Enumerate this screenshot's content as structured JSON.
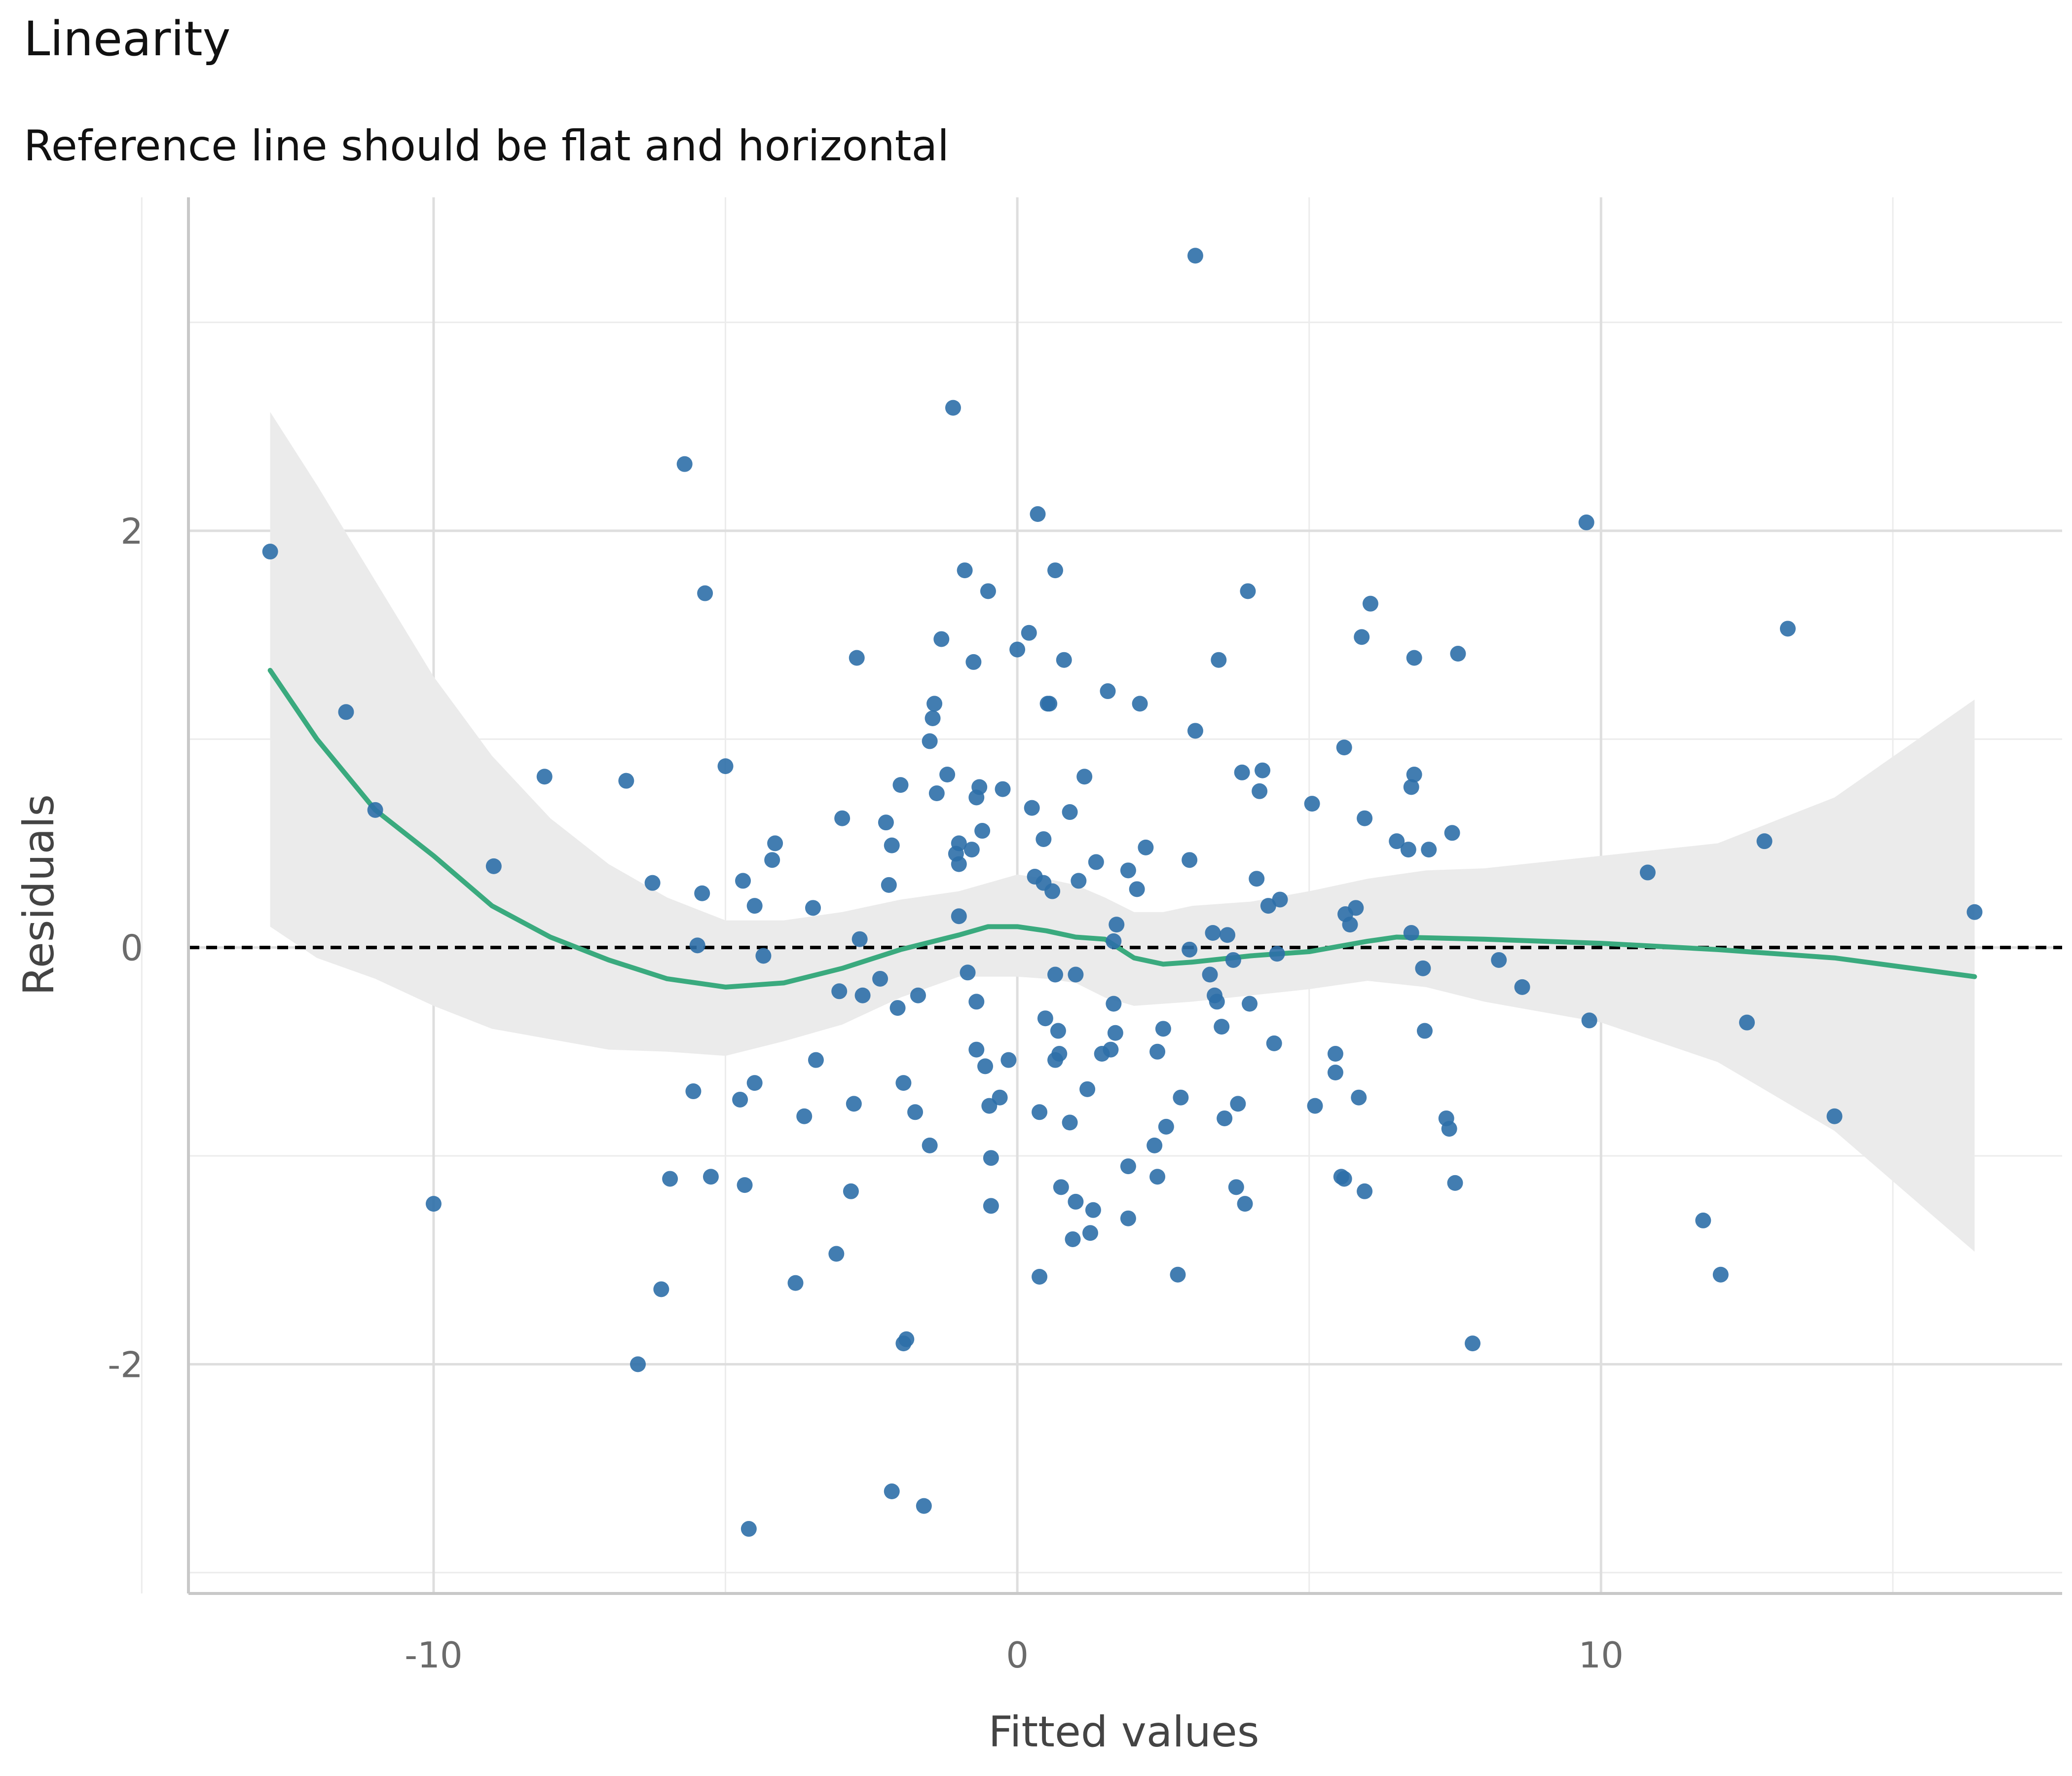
{
  "chart_data": {
    "type": "scatter",
    "title": "Linearity",
    "subtitle": "Reference line should be flat and horizontal",
    "xlabel": "Fitted values",
    "ylabel": "Residuals",
    "xlim": [
      -14.2,
      17.9
    ],
    "ylim": [
      -3.1,
      3.6
    ],
    "x_ticks": [
      -10,
      0,
      10
    ],
    "x_tick_labels": [
      "-10",
      "0",
      "10"
    ],
    "y_ticks": [
      -2,
      0,
      2
    ],
    "y_tick_labels": [
      "-2",
      "0",
      "2"
    ],
    "x_minor": [
      -15,
      -5,
      5,
      15
    ],
    "y_minor": [
      -3,
      -1,
      1,
      3
    ],
    "grid": true,
    "legend": "none",
    "reference_line": {
      "y": 0,
      "style": "dashed",
      "color": "#000000"
    },
    "colors": {
      "points": "#2e6fa8",
      "smooth": "#3aaa7e",
      "ribbon": "#ebebeb"
    },
    "points": [
      [
        -12.8,
        1.9
      ],
      [
        -11.5,
        1.13
      ],
      [
        -11.0,
        0.66
      ],
      [
        -10.0,
        -1.23
      ],
      [
        -8.97,
        0.39
      ],
      [
        -8.1,
        0.82
      ],
      [
        -6.7,
        0.8
      ],
      [
        -6.5,
        -2.0
      ],
      [
        -6.25,
        0.31
      ],
      [
        -6.1,
        -1.64
      ],
      [
        -5.95,
        -1.11
      ],
      [
        -5.7,
        2.32
      ],
      [
        -5.55,
        -0.69
      ],
      [
        -5.48,
        0.01
      ],
      [
        -5.4,
        0.26
      ],
      [
        -5.35,
        1.7
      ],
      [
        -5.25,
        -1.1
      ],
      [
        -5.0,
        0.87
      ],
      [
        -4.75,
        -0.73
      ],
      [
        -4.7,
        0.32
      ],
      [
        -4.67,
        -1.14
      ],
      [
        -4.6,
        -2.79
      ],
      [
        -4.5,
        0.2
      ],
      [
        -4.5,
        -0.65
      ],
      [
        -4.35,
        -0.04
      ],
      [
        -4.2,
        0.42
      ],
      [
        -4.15,
        0.5
      ],
      [
        -3.8,
        -1.61
      ],
      [
        -3.65,
        -0.81
      ],
      [
        -3.5,
        0.19
      ],
      [
        -3.45,
        -0.54
      ],
      [
        -3.1,
        -1.47
      ],
      [
        -3.05,
        -0.21
      ],
      [
        -3.0,
        0.62
      ],
      [
        -2.85,
        -1.17
      ],
      [
        -2.8,
        -0.75
      ],
      [
        -2.75,
        1.39
      ],
      [
        -2.7,
        0.04
      ],
      [
        -2.65,
        -0.23
      ],
      [
        -2.35,
        -0.15
      ],
      [
        -2.25,
        0.6
      ],
      [
        -2.2,
        0.3
      ],
      [
        -2.15,
        0.49
      ],
      [
        -2.15,
        -2.61
      ],
      [
        -2.05,
        -0.29
      ],
      [
        -2.0,
        0.78
      ],
      [
        -1.95,
        -1.9
      ],
      [
        -1.95,
        -0.65
      ],
      [
        -1.9,
        -1.88
      ],
      [
        -1.75,
        -0.79
      ],
      [
        -1.7,
        -0.23
      ],
      [
        -1.6,
        -2.68
      ],
      [
        -1.5,
        0.99
      ],
      [
        -1.5,
        -0.95
      ],
      [
        -1.45,
        1.1
      ],
      [
        -1.42,
        1.17
      ],
      [
        -1.38,
        0.74
      ],
      [
        -1.3,
        1.48
      ],
      [
        -1.2,
        0.83
      ],
      [
        -1.1,
        2.59
      ],
      [
        -1.05,
        0.45
      ],
      [
        -1.0,
        0.5
      ],
      [
        -1.0,
        0.15
      ],
      [
        -1.0,
        0.4
      ],
      [
        -0.9,
        1.81
      ],
      [
        -0.85,
        -0.12
      ],
      [
        -0.78,
        0.47
      ],
      [
        -0.75,
        1.37
      ],
      [
        -0.7,
        0.72
      ],
      [
        -0.7,
        -0.26
      ],
      [
        -0.7,
        -0.49
      ],
      [
        -0.65,
        0.77
      ],
      [
        -0.6,
        0.56
      ],
      [
        -0.55,
        -0.57
      ],
      [
        -0.5,
        1.71
      ],
      [
        -0.48,
        -0.76
      ],
      [
        -0.45,
        -1.01
      ],
      [
        -0.45,
        -1.24
      ],
      [
        -0.3,
        -0.72
      ],
      [
        -0.25,
        0.76
      ],
      [
        -0.15,
        -0.54
      ],
      [
        0.0,
        1.43
      ],
      [
        0.2,
        1.51
      ],
      [
        0.25,
        0.67
      ],
      [
        0.3,
        0.34
      ],
      [
        0.35,
        2.08
      ],
      [
        0.38,
        -0.79
      ],
      [
        0.38,
        -1.58
      ],
      [
        0.45,
        0.31
      ],
      [
        0.45,
        0.52
      ],
      [
        0.48,
        -0.34
      ],
      [
        0.52,
        1.17
      ],
      [
        0.55,
        1.17
      ],
      [
        0.6,
        0.27
      ],
      [
        0.65,
        -0.13
      ],
      [
        0.65,
        -0.54
      ],
      [
        0.65,
        1.81
      ],
      [
        0.7,
        -0.4
      ],
      [
        0.72,
        -0.51
      ],
      [
        0.75,
        -1.15
      ],
      [
        0.8,
        1.38
      ],
      [
        0.9,
        0.65
      ],
      [
        0.9,
        -0.84
      ],
      [
        0.95,
        -1.4
      ],
      [
        1.0,
        -1.22
      ],
      [
        1.0,
        -0.13
      ],
      [
        1.05,
        0.32
      ],
      [
        1.15,
        0.82
      ],
      [
        1.2,
        -0.68
      ],
      [
        1.25,
        -1.37
      ],
      [
        1.3,
        -1.26
      ],
      [
        1.35,
        0.41
      ],
      [
        1.45,
        -0.51
      ],
      [
        1.55,
        1.23
      ],
      [
        1.6,
        -0.49
      ],
      [
        1.65,
        0.03
      ],
      [
        1.65,
        -0.27
      ],
      [
        1.68,
        -0.41
      ],
      [
        1.7,
        0.11
      ],
      [
        1.9,
        -1.05
      ],
      [
        1.9,
        -1.3
      ],
      [
        1.9,
        0.37
      ],
      [
        2.05,
        0.28
      ],
      [
        2.1,
        1.17
      ],
      [
        2.2,
        0.48
      ],
      [
        2.35,
        -0.95
      ],
      [
        2.4,
        -0.5
      ],
      [
        2.4,
        -1.1
      ],
      [
        2.5,
        -0.39
      ],
      [
        2.55,
        -0.86
      ],
      [
        2.75,
        -1.57
      ],
      [
        2.8,
        -0.72
      ],
      [
        2.95,
        0.42
      ],
      [
        2.95,
        -0.01
      ],
      [
        3.05,
        1.04
      ],
      [
        3.05,
        3.32
      ],
      [
        3.3,
        -0.13
      ],
      [
        3.35,
        0.07
      ],
      [
        3.38,
        -0.23
      ],
      [
        3.42,
        -0.26
      ],
      [
        3.45,
        1.38
      ],
      [
        3.5,
        -0.38
      ],
      [
        3.55,
        -0.82
      ],
      [
        3.6,
        0.06
      ],
      [
        3.7,
        -0.06
      ],
      [
        3.75,
        -1.15
      ],
      [
        3.78,
        -0.75
      ],
      [
        3.85,
        0.84
      ],
      [
        3.9,
        -1.23
      ],
      [
        3.95,
        1.71
      ],
      [
        3.98,
        -0.27
      ],
      [
        4.1,
        0.33
      ],
      [
        4.15,
        0.75
      ],
      [
        4.2,
        0.85
      ],
      [
        4.3,
        0.2
      ],
      [
        4.4,
        -0.46
      ],
      [
        4.45,
        -0.03
      ],
      [
        4.5,
        0.23
      ],
      [
        5.05,
        0.69
      ],
      [
        5.1,
        -0.76
      ],
      [
        5.45,
        -0.51
      ],
      [
        5.45,
        -0.6
      ],
      [
        5.55,
        -1.1
      ],
      [
        5.6,
        -1.11
      ],
      [
        5.6,
        0.96
      ],
      [
        5.62,
        0.16
      ],
      [
        5.7,
        0.11
      ],
      [
        5.8,
        0.19
      ],
      [
        5.85,
        -0.72
      ],
      [
        5.9,
        1.49
      ],
      [
        5.95,
        -1.17
      ],
      [
        5.95,
        0.62
      ],
      [
        6.05,
        1.65
      ],
      [
        6.5,
        0.51
      ],
      [
        6.7,
        0.47
      ],
      [
        6.75,
        0.77
      ],
      [
        6.75,
        0.07
      ],
      [
        6.8,
        1.39
      ],
      [
        6.8,
        0.83
      ],
      [
        6.95,
        -0.1
      ],
      [
        6.98,
        -0.4
      ],
      [
        7.05,
        0.47
      ],
      [
        7.35,
        -0.82
      ],
      [
        7.4,
        -0.87
      ],
      [
        7.45,
        0.55
      ],
      [
        7.5,
        -1.13
      ],
      [
        7.55,
        1.41
      ],
      [
        7.8,
        -1.9
      ],
      [
        8.25,
        -0.06
      ],
      [
        8.65,
        -0.19
      ],
      [
        9.75,
        2.04
      ],
      [
        9.8,
        -0.35
      ],
      [
        10.8,
        0.36
      ],
      [
        11.75,
        -1.31
      ],
      [
        12.05,
        -1.57
      ],
      [
        12.5,
        -0.36
      ],
      [
        12.8,
        0.51
      ],
      [
        13.2,
        1.53
      ],
      [
        14.0,
        -0.81
      ],
      [
        16.4,
        0.17
      ]
    ],
    "smooth": [
      [
        -12.8,
        1.33
      ],
      [
        -12.0,
        1.0
      ],
      [
        -11.0,
        0.66
      ],
      [
        -10.0,
        0.44
      ],
      [
        -9.0,
        0.2
      ],
      [
        -8.0,
        0.05
      ],
      [
        -7.0,
        -0.06
      ],
      [
        -6.0,
        -0.15
      ],
      [
        -5.0,
        -0.19
      ],
      [
        -4.0,
        -0.17
      ],
      [
        -3.0,
        -0.1
      ],
      [
        -2.0,
        -0.01
      ],
      [
        -1.0,
        0.06
      ],
      [
        -0.5,
        0.1
      ],
      [
        0.0,
        0.1
      ],
      [
        0.5,
        0.08
      ],
      [
        1.0,
        0.05
      ],
      [
        1.5,
        0.04
      ],
      [
        2.0,
        -0.05
      ],
      [
        2.5,
        -0.08
      ],
      [
        3.0,
        -0.07
      ],
      [
        4.0,
        -0.04
      ],
      [
        5.0,
        -0.02
      ],
      [
        6.0,
        0.03
      ],
      [
        6.5,
        0.05
      ],
      [
        8.0,
        0.04
      ],
      [
        10.0,
        0.02
      ],
      [
        12.0,
        -0.01
      ],
      [
        14.0,
        -0.05
      ],
      [
        16.4,
        -0.14
      ]
    ],
    "ribbon_upper": [
      [
        -12.8,
        2.57
      ],
      [
        -12.0,
        2.22
      ],
      [
        -11.0,
        1.76
      ],
      [
        -10.0,
        1.3
      ],
      [
        -9.0,
        0.92
      ],
      [
        -8.0,
        0.62
      ],
      [
        -7.0,
        0.4
      ],
      [
        -6.0,
        0.24
      ],
      [
        -5.0,
        0.13
      ],
      [
        -4.0,
        0.13
      ],
      [
        -3.0,
        0.17
      ],
      [
        -2.0,
        0.23
      ],
      [
        -1.0,
        0.27
      ],
      [
        0.0,
        0.35
      ],
      [
        0.5,
        0.33
      ],
      [
        1.0,
        0.3
      ],
      [
        1.5,
        0.24
      ],
      [
        2.0,
        0.17
      ],
      [
        2.5,
        0.17
      ],
      [
        3.0,
        0.2
      ],
      [
        4.0,
        0.22
      ],
      [
        5.0,
        0.27
      ],
      [
        6.0,
        0.33
      ],
      [
        7.0,
        0.37
      ],
      [
        8.0,
        0.38
      ],
      [
        10.0,
        0.44
      ],
      [
        12.0,
        0.5
      ],
      [
        14.0,
        0.72
      ],
      [
        16.4,
        1.19
      ]
    ],
    "ribbon_lower": [
      [
        -12.8,
        0.1
      ],
      [
        -12.0,
        -0.05
      ],
      [
        -11.0,
        -0.15
      ],
      [
        -10.0,
        -0.28
      ],
      [
        -9.0,
        -0.39
      ],
      [
        -8.0,
        -0.44
      ],
      [
        -7.0,
        -0.49
      ],
      [
        -6.0,
        -0.5
      ],
      [
        -5.0,
        -0.52
      ],
      [
        -4.0,
        -0.45
      ],
      [
        -3.0,
        -0.37
      ],
      [
        -2.0,
        -0.24
      ],
      [
        -1.0,
        -0.14
      ],
      [
        0.0,
        -0.14
      ],
      [
        0.5,
        -0.15
      ],
      [
        1.0,
        -0.17
      ],
      [
        1.5,
        -0.24
      ],
      [
        2.0,
        -0.28
      ],
      [
        2.5,
        -0.27
      ],
      [
        3.0,
        -0.26
      ],
      [
        4.0,
        -0.23
      ],
      [
        5.0,
        -0.2
      ],
      [
        6.0,
        -0.16
      ],
      [
        7.0,
        -0.19
      ],
      [
        8.0,
        -0.26
      ],
      [
        10.0,
        -0.36
      ],
      [
        12.0,
        -0.55
      ],
      [
        14.0,
        -0.88
      ],
      [
        16.4,
        -1.46
      ]
    ]
  }
}
